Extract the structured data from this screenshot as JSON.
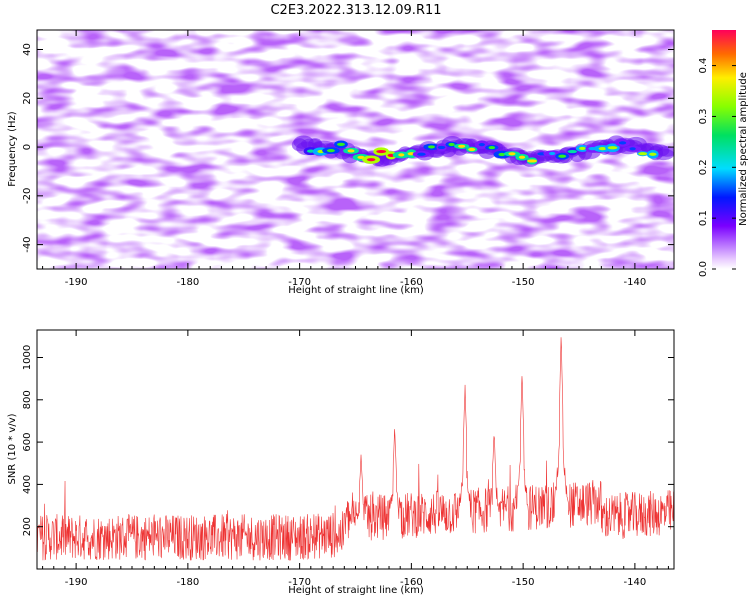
{
  "title": "C2E3.2022.313.12.09.R11",
  "chart_data": [
    {
      "type": "heatmap",
      "title": "",
      "xlabel": "Height of straight line (km)",
      "ylabel": "Frequency (Hz)",
      "xlim": [
        -193.5,
        -136.5
      ],
      "ylim": [
        -50,
        48
      ],
      "xticks": [
        -190,
        -180,
        -170,
        -160,
        -150,
        -140
      ],
      "yticks": [
        -40,
        -20,
        0,
        20,
        40
      ],
      "colorbar": {
        "label": "Normalized spectral amplitude",
        "range": [
          0.0,
          0.47
        ],
        "ticks": [
          0.0,
          0.1,
          0.2,
          0.3,
          0.4
        ]
      },
      "features": [
        {
          "description": "broadband low-amplitude noise",
          "x_range": [
            -193.5,
            -136.5
          ],
          "y_range": [
            -50,
            48
          ],
          "amplitude": 0.08
        },
        {
          "description": "narrowband signal near 0 Hz",
          "x_range": [
            -170,
            -137
          ],
          "y_center": -2,
          "amplitude_peak": 0.45,
          "peak_x": -162.5
        }
      ]
    },
    {
      "type": "line",
      "title": "",
      "xlabel": "Height of straight line (km)",
      "ylabel": "SNR (10 * v/v)",
      "xlim": [
        -193.5,
        -136.5
      ],
      "ylim": [
        0,
        1130
      ],
      "xticks": [
        -190,
        -180,
        -170,
        -160,
        -150,
        -140
      ],
      "yticks": [
        200,
        400,
        600,
        800,
        1000
      ],
      "series": [
        {
          "name": "SNR",
          "color": "#ee3333",
          "baseline": 150,
          "noise_amplitude": 110,
          "peaks": [
            {
              "x": -161.5,
              "y": 680
            },
            {
              "x": -155.2,
              "y": 880
            },
            {
              "x": -150.1,
              "y": 940
            },
            {
              "x": -146.6,
              "y": 1130
            },
            {
              "x": -164.5,
              "y": 550
            },
            {
              "x": -152.6,
              "y": 660
            }
          ]
        }
      ]
    }
  ]
}
